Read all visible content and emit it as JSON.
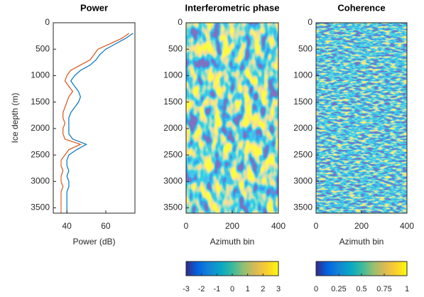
{
  "chart_data": [
    {
      "type": "line",
      "title": "Power",
      "xlabel": "Power (dB)",
      "ylabel": "Ice depth (m)",
      "y": [
        200,
        300,
        400,
        500,
        600,
        700,
        800,
        900,
        1000,
        1100,
        1200,
        1300,
        1400,
        1500,
        1600,
        1700,
        1800,
        1900,
        2000,
        2100,
        2200,
        2300,
        2400,
        2500,
        2600,
        2700,
        2800,
        2900,
        3000,
        3100,
        3200,
        3300,
        3400,
        3500,
        3600
      ],
      "series": [
        {
          "color": "#0072bd",
          "values": [
            74,
            70,
            65,
            60,
            57,
            55,
            52,
            47,
            44,
            42,
            44,
            46,
            47,
            46,
            44,
            42,
            41,
            41,
            41,
            41,
            43,
            50,
            45,
            41,
            40,
            40,
            41,
            40,
            41,
            41,
            40,
            40,
            40,
            40,
            40
          ]
        },
        {
          "color": "#d95319",
          "values": [
            72,
            68,
            62,
            56,
            54,
            52,
            47,
            42,
            40,
            39,
            41,
            43,
            41,
            40,
            39,
            38,
            38,
            39,
            38,
            38,
            39,
            47,
            41,
            39,
            37,
            37,
            38,
            37,
            37,
            38,
            37,
            37,
            37,
            37,
            37
          ]
        }
      ],
      "xlim": [
        33,
        75
      ],
      "xticks": [
        40,
        60
      ],
      "ylim": [
        0,
        3600
      ],
      "yticks": [
        0,
        500,
        1000,
        1500,
        2000,
        2500,
        3000,
        3500
      ],
      "reverse_y": true
    },
    {
      "type": "heatmap",
      "title": "Interferometric phase",
      "xlabel": "Azimuth bin",
      "xlim": [
        0,
        400
      ],
      "xticks": [
        0,
        200,
        400
      ],
      "ylim": [
        0,
        3600
      ],
      "yticks": [
        0,
        500,
        1000,
        1500,
        2000,
        2500,
        3000,
        3500
      ],
      "reverse_y": true,
      "colorbar": {
        "clim": [
          -3,
          3
        ],
        "ticks": [
          -3,
          -2,
          -1,
          0,
          1,
          2,
          3
        ]
      }
    },
    {
      "type": "heatmap",
      "title": "Coherence",
      "xlabel": "Azimuth bin",
      "xlim": [
        0,
        400
      ],
      "xticks": [
        0,
        200,
        400
      ],
      "ylim": [
        0,
        3600
      ],
      "yticks": [
        0,
        500,
        1000,
        1500,
        2000,
        2500,
        3000,
        3500
      ],
      "reverse_y": true,
      "colorbar": {
        "clim": [
          0,
          1
        ],
        "ticks": [
          0,
          0.25,
          0.5,
          0.75,
          1
        ]
      }
    }
  ]
}
